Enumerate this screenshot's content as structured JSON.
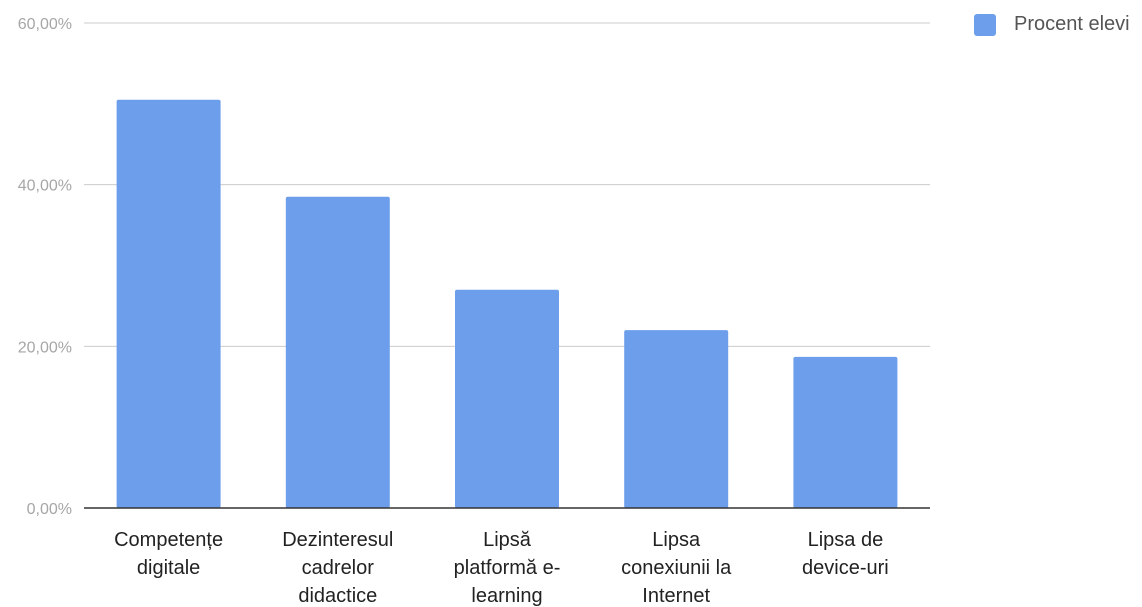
{
  "chart_data": {
    "type": "bar",
    "categories": [
      [
        "Competențe",
        "digitale"
      ],
      [
        "Dezinteresul",
        "cadrelor",
        "didactice"
      ],
      [
        "Lipsă",
        "platformă e-",
        "learning"
      ],
      [
        "Lipsa",
        "conexiunii la",
        "Internet"
      ],
      [
        "Lipsa de",
        "device-uri"
      ]
    ],
    "series": [
      {
        "name": "Procent elevi",
        "values": [
          50.5,
          38.5,
          27.0,
          22.0,
          18.7
        ]
      }
    ],
    "y_ticks": [
      "0,00%",
      "20,00%",
      "40,00%",
      "60,00%"
    ],
    "ylim": [
      0,
      60
    ],
    "grid": true,
    "legend_position": "top-right",
    "colors": {
      "bar": "#6d9eeb",
      "grid": "#cccccc",
      "axis": "#333333"
    }
  }
}
